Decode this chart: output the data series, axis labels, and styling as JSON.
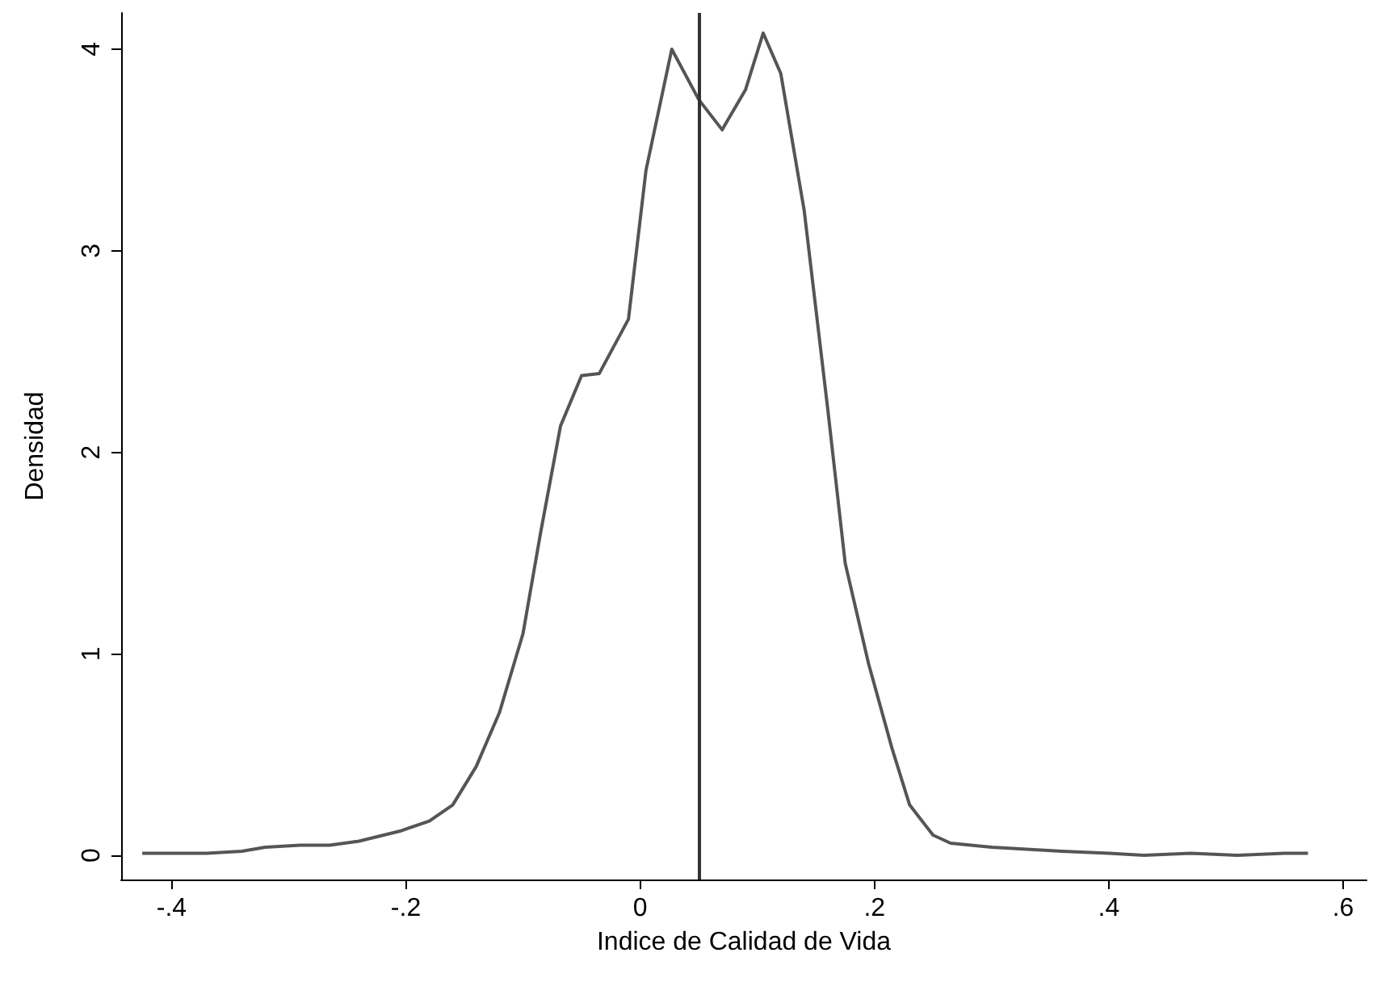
{
  "chart_data": {
    "type": "line",
    "xlabel": "Indice de Calidad de Vida",
    "ylabel": "Densidad",
    "xlim": [
      -0.443,
      0.62
    ],
    "ylim": [
      -0.12,
      4.18
    ],
    "xticks": [
      {
        "value": -0.4,
        "label": "-.4"
      },
      {
        "value": -0.2,
        "label": "-.2"
      },
      {
        "value": 0,
        "label": "0"
      },
      {
        "value": 0.2,
        "label": ".2"
      },
      {
        "value": 0.4,
        "label": ".4"
      },
      {
        "value": 0.6,
        "label": ".6"
      }
    ],
    "yticks": [
      0,
      1,
      2,
      3,
      4
    ],
    "grid": false,
    "marker": "none",
    "line_style": "solid",
    "ref_lines": [
      {
        "axis": "x",
        "value": 0.048,
        "color": "#333333"
      }
    ],
    "series": [
      {
        "color": "#555555",
        "x": [
          -0.425,
          -0.4,
          -0.37,
          -0.34,
          -0.32,
          -0.29,
          -0.265,
          -0.24,
          -0.205,
          -0.18,
          -0.16,
          -0.14,
          -0.12,
          -0.1,
          -0.085,
          -0.068,
          -0.05,
          -0.035,
          -0.01,
          0.005,
          0.027,
          0.05,
          0.07,
          0.09,
          0.105,
          0.12,
          0.14,
          0.16,
          0.175,
          0.195,
          0.215,
          0.23,
          0.25,
          0.265,
          0.3,
          0.33,
          0.36,
          0.4,
          0.43,
          0.47,
          0.51,
          0.55,
          0.57
        ],
        "values": [
          0.01,
          0.01,
          0.01,
          0.02,
          0.04,
          0.05,
          0.05,
          0.07,
          0.12,
          0.17,
          0.25,
          0.44,
          0.71,
          1.1,
          1.6,
          2.13,
          2.38,
          2.39,
          2.66,
          3.4,
          4.0,
          3.75,
          3.6,
          3.8,
          4.08,
          3.88,
          3.2,
          2.22,
          1.45,
          0.95,
          0.53,
          0.25,
          0.1,
          0.06,
          0.04,
          0.03,
          0.02,
          0.01,
          0.0,
          0.01,
          0.0,
          0.01,
          0.01
        ]
      }
    ]
  }
}
